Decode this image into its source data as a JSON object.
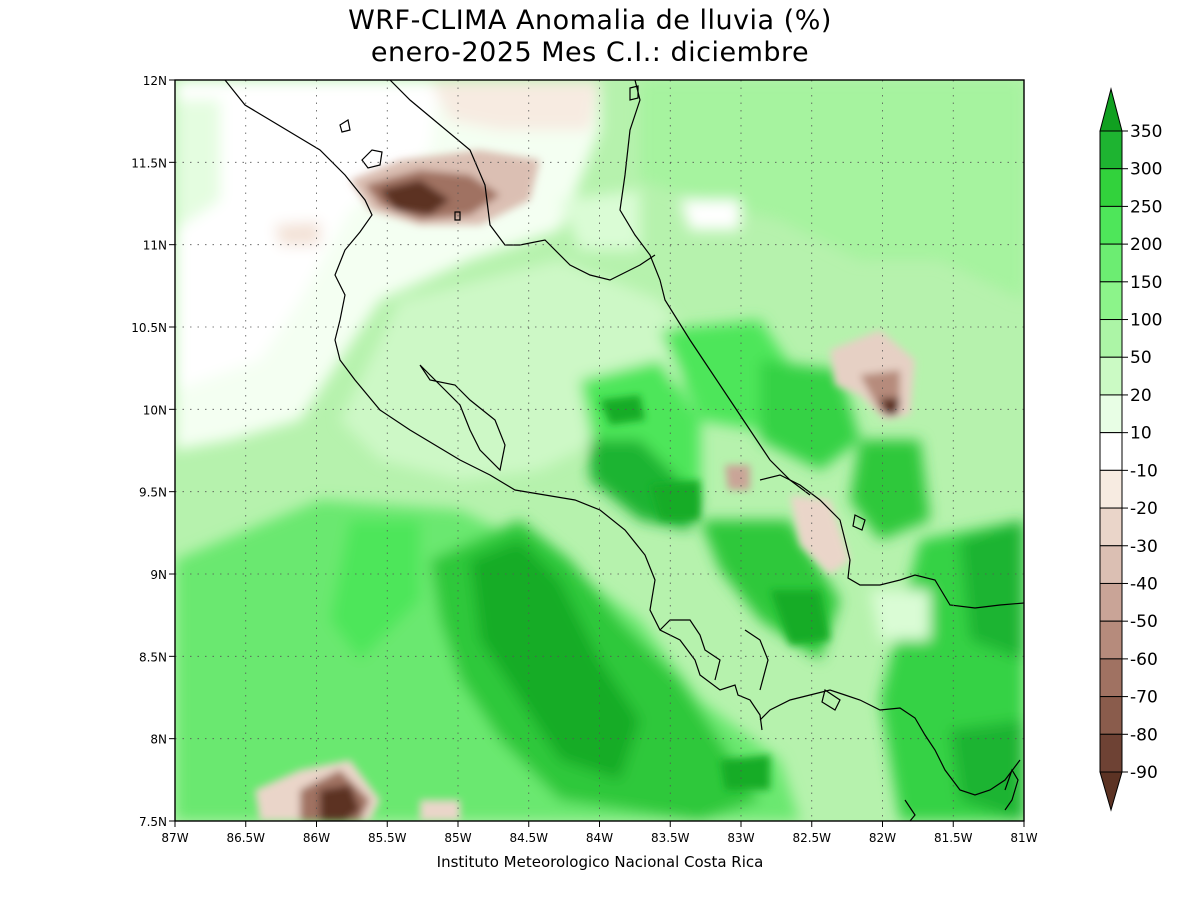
{
  "title": {
    "line1": "WRF-CLIMA Anomalia de lluvia (%)",
    "line2": "enero-2025 Mes C.I.: diciembre"
  },
  "credit": "Instituto Meteorologico Nacional Costa Rica",
  "map": {
    "lon_range": [
      -87,
      -81
    ],
    "lat_range": [
      7.5,
      12
    ],
    "x_ticks": [
      "87W",
      "86.5W",
      "86W",
      "85.5W",
      "85W",
      "84.5W",
      "84W",
      "83.5W",
      "83W",
      "82.5W",
      "82W",
      "81.5W",
      "81W"
    ],
    "y_ticks": [
      "7.5N",
      "8N",
      "8.5N",
      "9N",
      "9.5N",
      "10N",
      "10.5N",
      "11N",
      "11.5N",
      "12N"
    ],
    "grid": "dotted",
    "background_fill": "#b6f2ad"
  },
  "colorbar": {
    "labels": [
      "350",
      "300",
      "250",
      "200",
      "150",
      "100",
      "50",
      "20",
      "10",
      "-10",
      "-20",
      "-30",
      "-40",
      "-50",
      "-60",
      "-70",
      "-80",
      "-90"
    ],
    "colors": [
      "#10a020",
      "#1eb431",
      "#32d23c",
      "#4ee65a",
      "#6ced72",
      "#8cf48a",
      "#acf5a6",
      "#cbfac4",
      "#e8fee5",
      "#ffffff",
      "#f7ebe1",
      "#ead5c9",
      "#dbbfb3",
      "#c9a497",
      "#b68b7c",
      "#a07262",
      "#8a5c4c",
      "#6e4234",
      "#5c3324"
    ]
  }
}
